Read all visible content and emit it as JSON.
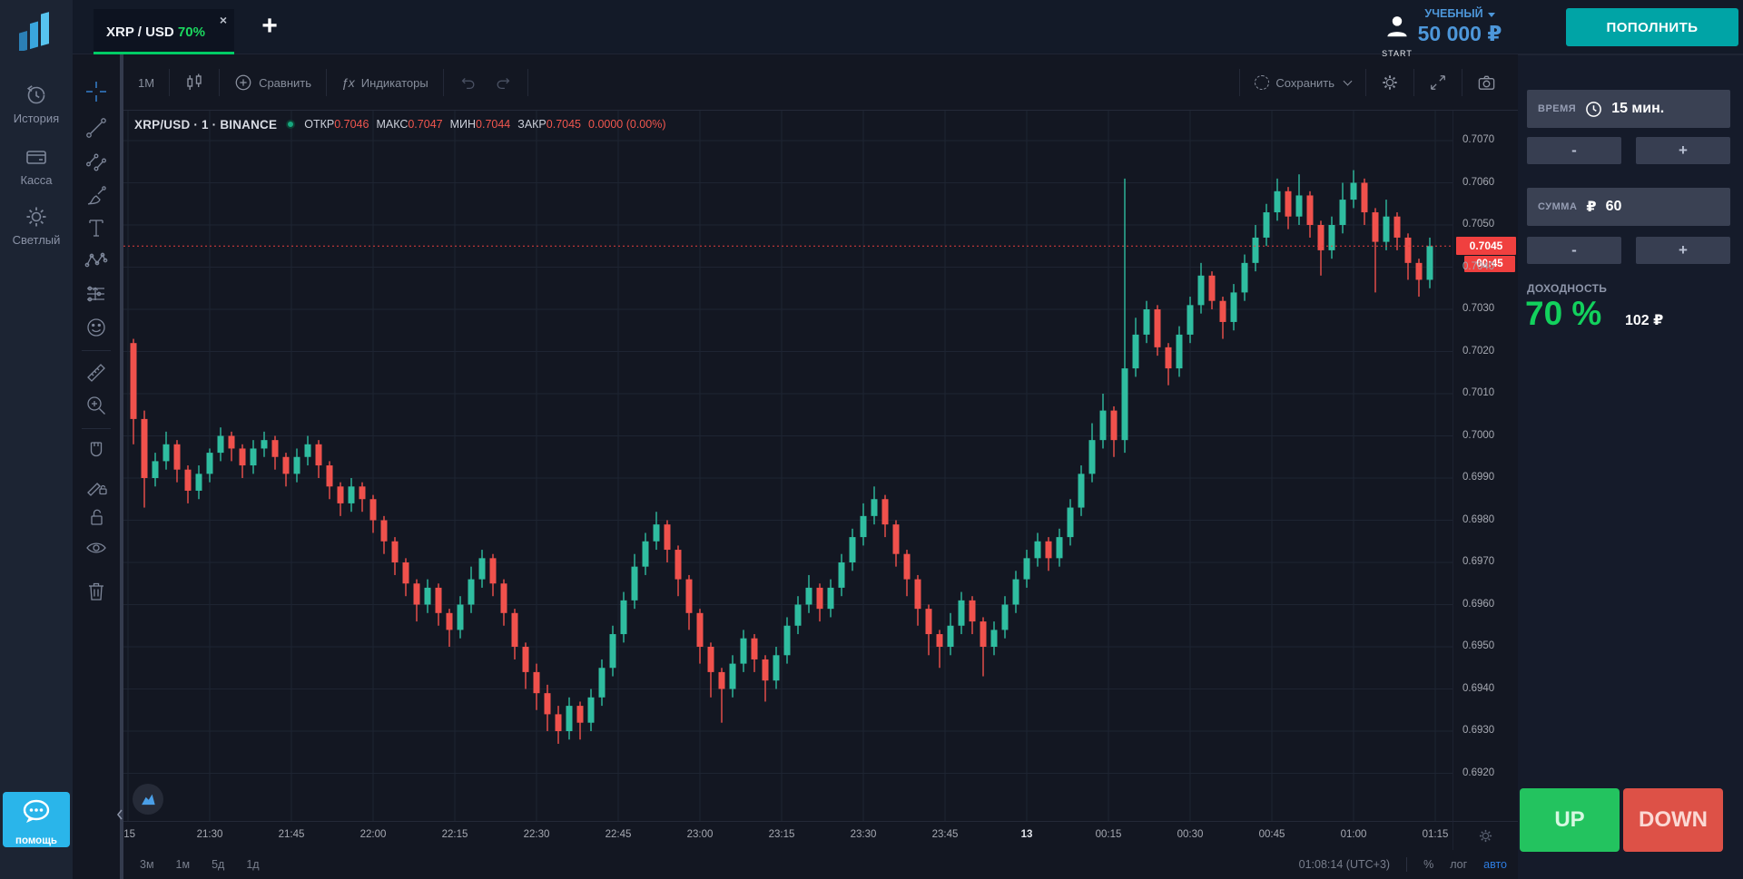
{
  "topbar": {
    "tab": {
      "pair": "XRP / USD",
      "payout": "70%",
      "close": "×"
    },
    "plus": "+",
    "start": "START",
    "account_type": "УЧЕБНЫЙ",
    "balance": "50 000 ₽",
    "deposit": "ПОПОЛНИТЬ"
  },
  "sidebar": {
    "items": [
      {
        "icon": "history-icon",
        "label": "История"
      },
      {
        "icon": "cashier-icon",
        "label": "Касса"
      },
      {
        "icon": "theme-icon",
        "label": "Светлый"
      }
    ],
    "help": "помощь"
  },
  "chart_toolbar": {
    "interval": "1М",
    "compare": "Сравнить",
    "indicators_icon": "ƒx",
    "indicators": "Индикаторы",
    "save": "Сохранить",
    "tools": [
      "crosshair",
      "trend-line",
      "parallel-channel",
      "brush",
      "text",
      "xabcd-pattern",
      "forecast",
      "emoji",
      "ruler",
      "zoom-in",
      "magnet",
      "drawing-lock",
      "unlock-all",
      "hide-all",
      "remove-all"
    ]
  },
  "legend": {
    "instrument": "XRP/USD · 1 · BINANCE",
    "ohlc": [
      {
        "k": "ОТКР",
        "v": "0.7046"
      },
      {
        "k": "МАКС",
        "v": "0.7047"
      },
      {
        "k": "МИН",
        "v": "0.7044"
      },
      {
        "k": "ЗАКР",
        "v": "0.7045"
      }
    ],
    "change": "0.0000 (0.00%)"
  },
  "panel": {
    "time_label": "ВРЕМЯ",
    "time_value": "15 мин.",
    "minus": "-",
    "plus": "+",
    "amount_label": "СУММА",
    "currency": "₽",
    "amount_value": "60",
    "profit_label": "ДОХОДНОСТЬ",
    "profit_pct": "70 %",
    "profit_amount": "102 ₽",
    "up": "UP",
    "down": "DOWN"
  },
  "bottom_bar": {
    "ranges": [
      "3м",
      "1м",
      "5д",
      "1д"
    ],
    "clock": "01:08:14 (UTC+3)",
    "percent": "%",
    "log": "лог",
    "auto": "авто"
  },
  "chart_data": {
    "type": "candlestick",
    "symbol": "XRP/USD",
    "interval": "1",
    "exchange": "BINANCE",
    "title": "XRP/USD 1-minute candles, BINANCE",
    "ohlc_legend": {
      "open": 0.7046,
      "high": 0.7047,
      "low": 0.7044,
      "close": 0.7045,
      "change": "0.0000 (0.00%)"
    },
    "current_price": 0.7045,
    "current_price_label": "0.7045",
    "countdown": "00:45",
    "up_color": "#2fbda0",
    "down_color": "#f0514c",
    "grid": true,
    "ylim": [
      0.6909,
      0.7078
    ],
    "price_ticks": [
      "0.7070",
      "0.7060",
      "0.7050",
      "0.7040",
      "0.7030",
      "0.7020",
      "0.7010",
      "0.7000",
      "0.6990",
      "0.6980",
      "0.6970",
      "0.6960",
      "0.6950",
      "0.6940",
      "0.6930",
      "0.6920"
    ],
    "x_labels": [
      ":15",
      "21:30",
      "21:45",
      "22:00",
      "22:15",
      "22:30",
      "22:45",
      "23:00",
      "23:15",
      "23:30",
      "23:45",
      "13",
      "00:15",
      "00:30",
      "00:45",
      "01:00",
      "01:15"
    ],
    "date_label": "13",
    "start_time": "21:15",
    "candle_minutes": 2,
    "candles": [
      [
        0.7022,
        0.7023,
        0.6998,
        0.7004
      ],
      [
        0.7004,
        0.7006,
        0.6983,
        0.699
      ],
      [
        0.699,
        0.6996,
        0.6988,
        0.6994
      ],
      [
        0.6994,
        0.7001,
        0.6992,
        0.6998
      ],
      [
        0.6998,
        0.6999,
        0.6989,
        0.6992
      ],
      [
        0.6992,
        0.6993,
        0.6984,
        0.6987
      ],
      [
        0.6987,
        0.6993,
        0.6985,
        0.6991
      ],
      [
        0.6991,
        0.6997,
        0.6989,
        0.6996
      ],
      [
        0.6996,
        0.7002,
        0.6994,
        0.7
      ],
      [
        0.7,
        0.7001,
        0.6994,
        0.6997
      ],
      [
        0.6997,
        0.6998,
        0.699,
        0.6993
      ],
      [
        0.6993,
        0.6999,
        0.6991,
        0.6997
      ],
      [
        0.6997,
        0.7001,
        0.6995,
        0.6999
      ],
      [
        0.6999,
        0.7,
        0.6992,
        0.6995
      ],
      [
        0.6995,
        0.6996,
        0.6988,
        0.6991
      ],
      [
        0.6991,
        0.6997,
        0.6989,
        0.6995
      ],
      [
        0.6995,
        0.7,
        0.6993,
        0.6998
      ],
      [
        0.6998,
        0.6999,
        0.699,
        0.6993
      ],
      [
        0.6993,
        0.6994,
        0.6985,
        0.6988
      ],
      [
        0.6988,
        0.6989,
        0.6981,
        0.6984
      ],
      [
        0.6984,
        0.699,
        0.6982,
        0.6988
      ],
      [
        0.6988,
        0.6989,
        0.6982,
        0.6985
      ],
      [
        0.6985,
        0.6986,
        0.6977,
        0.698
      ],
      [
        0.698,
        0.6981,
        0.6972,
        0.6975
      ],
      [
        0.6975,
        0.6976,
        0.6967,
        0.697
      ],
      [
        0.697,
        0.6971,
        0.6962,
        0.6965
      ],
      [
        0.6965,
        0.6966,
        0.6956,
        0.696
      ],
      [
        0.696,
        0.6966,
        0.6958,
        0.6964
      ],
      [
        0.6964,
        0.6965,
        0.6955,
        0.6958
      ],
      [
        0.6958,
        0.6959,
        0.695,
        0.6954
      ],
      [
        0.6954,
        0.6962,
        0.6952,
        0.696
      ],
      [
        0.696,
        0.6969,
        0.6958,
        0.6966
      ],
      [
        0.6966,
        0.6973,
        0.6964,
        0.6971
      ],
      [
        0.6971,
        0.6972,
        0.6962,
        0.6965
      ],
      [
        0.6965,
        0.6966,
        0.6955,
        0.6958
      ],
      [
        0.6958,
        0.6959,
        0.6947,
        0.695
      ],
      [
        0.695,
        0.6951,
        0.694,
        0.6944
      ],
      [
        0.6944,
        0.6946,
        0.6935,
        0.6939
      ],
      [
        0.6939,
        0.6941,
        0.693,
        0.6934
      ],
      [
        0.6934,
        0.6936,
        0.6927,
        0.693
      ],
      [
        0.693,
        0.6938,
        0.6928,
        0.6936
      ],
      [
        0.6936,
        0.6937,
        0.6928,
        0.6932
      ],
      [
        0.6932,
        0.694,
        0.693,
        0.6938
      ],
      [
        0.6938,
        0.6947,
        0.6936,
        0.6945
      ],
      [
        0.6945,
        0.6955,
        0.6943,
        0.6953
      ],
      [
        0.6953,
        0.6963,
        0.6951,
        0.6961
      ],
      [
        0.6961,
        0.6972,
        0.6959,
        0.6969
      ],
      [
        0.6969,
        0.6977,
        0.6967,
        0.6975
      ],
      [
        0.6975,
        0.6982,
        0.6973,
        0.6979
      ],
      [
        0.6979,
        0.698,
        0.697,
        0.6973
      ],
      [
        0.6973,
        0.6974,
        0.6962,
        0.6966
      ],
      [
        0.6966,
        0.6967,
        0.6954,
        0.6958
      ],
      [
        0.6958,
        0.6959,
        0.6946,
        0.695
      ],
      [
        0.695,
        0.6951,
        0.6938,
        0.6944
      ],
      [
        0.6944,
        0.6945,
        0.6932,
        0.694
      ],
      [
        0.694,
        0.6948,
        0.6938,
        0.6946
      ],
      [
        0.6946,
        0.6954,
        0.6944,
        0.6952
      ],
      [
        0.6952,
        0.6953,
        0.6944,
        0.6947
      ],
      [
        0.6947,
        0.6948,
        0.6937,
        0.6942
      ],
      [
        0.6942,
        0.695,
        0.694,
        0.6948
      ],
      [
        0.6948,
        0.6957,
        0.6946,
        0.6955
      ],
      [
        0.6955,
        0.6962,
        0.6953,
        0.696
      ],
      [
        0.696,
        0.6967,
        0.6958,
        0.6964
      ],
      [
        0.6964,
        0.6965,
        0.6956,
        0.6959
      ],
      [
        0.6959,
        0.6966,
        0.6957,
        0.6964
      ],
      [
        0.6964,
        0.6972,
        0.6962,
        0.697
      ],
      [
        0.697,
        0.6978,
        0.6968,
        0.6976
      ],
      [
        0.6976,
        0.6984,
        0.6974,
        0.6981
      ],
      [
        0.6981,
        0.6988,
        0.6979,
        0.6985
      ],
      [
        0.6985,
        0.6986,
        0.6976,
        0.6979
      ],
      [
        0.6979,
        0.698,
        0.6969,
        0.6972
      ],
      [
        0.6972,
        0.6973,
        0.6962,
        0.6966
      ],
      [
        0.6966,
        0.6967,
        0.6955,
        0.6959
      ],
      [
        0.6959,
        0.696,
        0.6948,
        0.6953
      ],
      [
        0.6953,
        0.6954,
        0.6945,
        0.695
      ],
      [
        0.695,
        0.6958,
        0.6948,
        0.6955
      ],
      [
        0.6955,
        0.6963,
        0.6953,
        0.6961
      ],
      [
        0.6961,
        0.6962,
        0.6953,
        0.6956
      ],
      [
        0.6956,
        0.6957,
        0.6943,
        0.695
      ],
      [
        0.695,
        0.6956,
        0.6948,
        0.6954
      ],
      [
        0.6954,
        0.6962,
        0.6952,
        0.696
      ],
      [
        0.696,
        0.6968,
        0.6958,
        0.6966
      ],
      [
        0.6966,
        0.6973,
        0.6964,
        0.6971
      ],
      [
        0.6971,
        0.6977,
        0.6969,
        0.6975
      ],
      [
        0.6975,
        0.6976,
        0.6968,
        0.6971
      ],
      [
        0.6971,
        0.6978,
        0.6969,
        0.6976
      ],
      [
        0.6976,
        0.6985,
        0.6974,
        0.6983
      ],
      [
        0.6983,
        0.6993,
        0.6981,
        0.6991
      ],
      [
        0.6991,
        0.7003,
        0.6989,
        0.6999
      ],
      [
        0.6999,
        0.701,
        0.6997,
        0.7006
      ],
      [
        0.7006,
        0.7007,
        0.6995,
        0.6999
      ],
      [
        0.6999,
        0.7061,
        0.6996,
        0.7016
      ],
      [
        0.7016,
        0.7028,
        0.7014,
        0.7024
      ],
      [
        0.7024,
        0.7032,
        0.7022,
        0.703
      ],
      [
        0.703,
        0.7031,
        0.7019,
        0.7021
      ],
      [
        0.7021,
        0.7022,
        0.7012,
        0.7016
      ],
      [
        0.7016,
        0.7026,
        0.7014,
        0.7024
      ],
      [
        0.7024,
        0.7033,
        0.7022,
        0.7031
      ],
      [
        0.7031,
        0.7041,
        0.7029,
        0.7038
      ],
      [
        0.7038,
        0.7039,
        0.703,
        0.7032
      ],
      [
        0.7032,
        0.7033,
        0.7023,
        0.7027
      ],
      [
        0.7027,
        0.7036,
        0.7025,
        0.7034
      ],
      [
        0.7034,
        0.7043,
        0.7032,
        0.7041
      ],
      [
        0.7041,
        0.705,
        0.7039,
        0.7047
      ],
      [
        0.7047,
        0.7055,
        0.7045,
        0.7053
      ],
      [
        0.7053,
        0.7061,
        0.7051,
        0.7058
      ],
      [
        0.7058,
        0.7059,
        0.7049,
        0.7052
      ],
      [
        0.7052,
        0.7062,
        0.705,
        0.7057
      ],
      [
        0.7057,
        0.7058,
        0.7047,
        0.705
      ],
      [
        0.705,
        0.7051,
        0.7038,
        0.7044
      ],
      [
        0.7044,
        0.7052,
        0.7042,
        0.705
      ],
      [
        0.705,
        0.706,
        0.7048,
        0.7056
      ],
      [
        0.7056,
        0.7063,
        0.7054,
        0.706
      ],
      [
        0.706,
        0.7061,
        0.705,
        0.7053
      ],
      [
        0.7053,
        0.7054,
        0.7034,
        0.7046
      ],
      [
        0.7046,
        0.7056,
        0.7044,
        0.7052
      ],
      [
        0.7052,
        0.7053,
        0.7044,
        0.7047
      ],
      [
        0.7047,
        0.7048,
        0.7037,
        0.7041
      ],
      [
        0.7041,
        0.7042,
        0.7033,
        0.7037
      ],
      [
        0.7037,
        0.7047,
        0.7035,
        0.7045
      ]
    ]
  }
}
